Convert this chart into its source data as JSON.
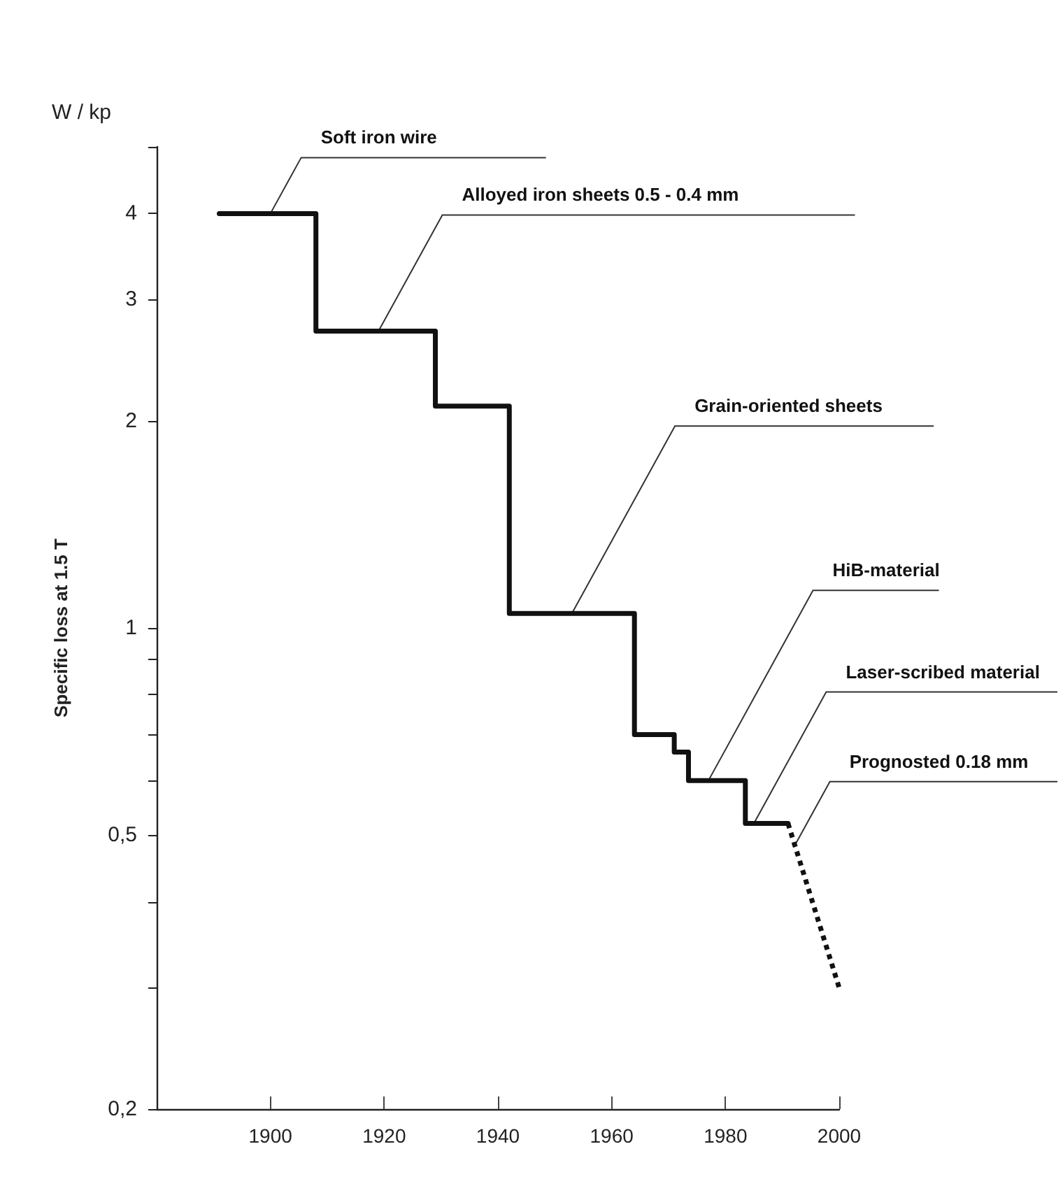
{
  "chart_data": {
    "type": "step",
    "ylabel": "Specific loss at 1.5 T",
    "x": [
      1891,
      1908,
      1929,
      1942,
      1964,
      1971,
      1973.5,
      1983.5,
      1991
    ],
    "series": [
      {
        "color": "#111111",
        "values": [
          4,
          2.7,
          2.1,
          1.05,
          0.7,
          0.66,
          0.6,
          0.52,
          0.52
        ]
      },
      {
        "type": "line",
        "line_style": "dotted",
        "color": "#111111",
        "x": [
          1991,
          2000
        ],
        "values": [
          0.52,
          0.3
        ]
      }
    ],
    "log": "y",
    "xlim": [
      1880,
      2000
    ],
    "xticks": [
      1900,
      1920,
      1940,
      1960,
      1980,
      2000
    ],
    "ylim": [
      0.2,
      5
    ],
    "yticks": [
      {
        "value": 0.2,
        "label": "0,2"
      },
      {
        "value": 0.3,
        "label": null
      },
      {
        "value": 0.4,
        "label": null
      },
      {
        "value": 0.5,
        "label": "0,5"
      },
      {
        "value": 0.6,
        "label": null
      },
      {
        "value": 0.7,
        "label": null
      },
      {
        "value": 0.8,
        "label": null
      },
      {
        "value": 0.9,
        "label": null
      },
      1,
      2,
      3,
      4,
      {
        "value": 5,
        "label": null
      }
    ],
    "annotations": [
      "W / kp",
      {
        "text": "Soft iron wire",
        "x": 1900,
        "y": 4
      },
      {
        "text": "Alloyed iron sheets 0.5 - 0.4 mm",
        "x": 1919,
        "y": 2.7
      },
      {
        "text": "Grain-oriented sheets",
        "x": 1953,
        "y": 1.05
      },
      {
        "text": "HiB-material",
        "x": 1977,
        "y": 0.6
      },
      {
        "text": "Laser-scribed material",
        "x": 1985,
        "y": 0.52
      },
      {
        "text": "Prognosted 0.18 mm",
        "x": 1992,
        "y": 0.48
      }
    ]
  }
}
